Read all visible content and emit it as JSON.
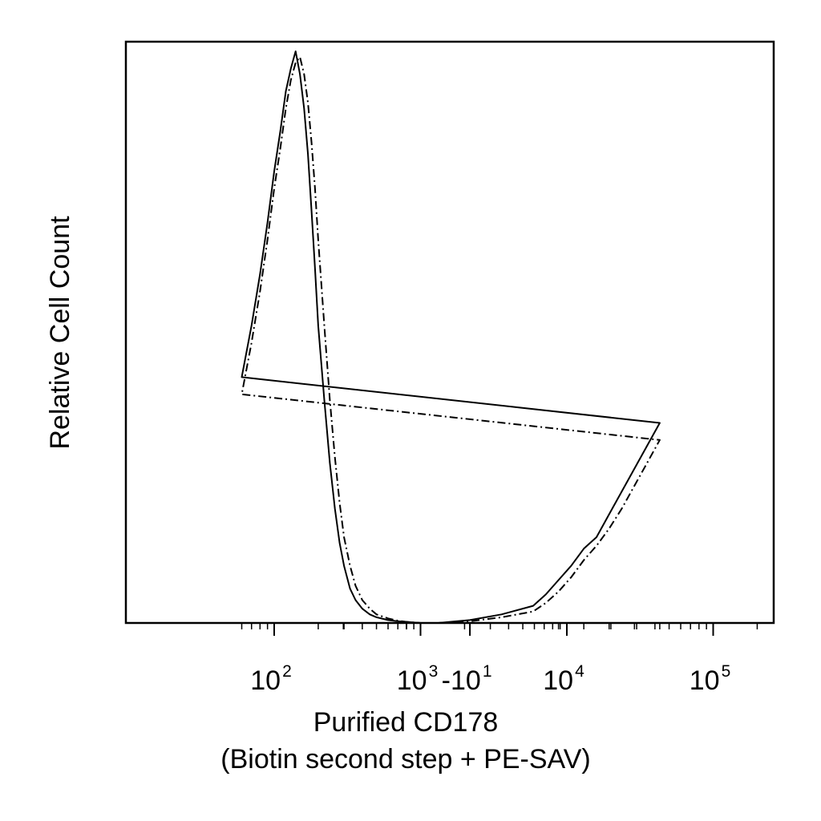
{
  "chart_data": {
    "type": "line",
    "title": "",
    "xlabel": "Purified CD178",
    "xlabel_line2": "(Biotin second step + PE-SAV)",
    "ylabel": "Relative Cell Count",
    "xscale": "biexponential",
    "xlim": [
      -30,
      250000
    ],
    "ylim": [
      0,
      100
    ],
    "grid": false,
    "legend": "none",
    "x_ticks": [
      {
        "base": "-10",
        "exp": "1",
        "value": -10
      },
      {
        "base": "10",
        "exp": "2",
        "value": 100
      },
      {
        "base": "10",
        "exp": "3",
        "value": 1000
      },
      {
        "base": "10",
        "exp": "4",
        "value": 10000
      },
      {
        "base": "10",
        "exp": "5",
        "value": 100000
      }
    ],
    "series": [
      {
        "style": "solid",
        "x": [
          -30,
          -15,
          -10,
          -5,
          0,
          5,
          10,
          15,
          20,
          25,
          30,
          35,
          40,
          45,
          50,
          60,
          70,
          80,
          90,
          100,
          110,
          120,
          130,
          140,
          150,
          160,
          170,
          180,
          190,
          200,
          220,
          240,
          260,
          280,
          300,
          330,
          360,
          400,
          450,
          500,
          600,
          700,
          800,
          1000
        ],
        "y": [
          0,
          0,
          0.5,
          1.5,
          3,
          5,
          7.5,
          10,
          13,
          15,
          19,
          23,
          27,
          31,
          35,
          43,
          52,
          61,
          70,
          79,
          86,
          93,
          97,
          100,
          96,
          90,
          82,
          72,
          62,
          52,
          39,
          28,
          20,
          14,
          10,
          6,
          4,
          2.5,
          1.5,
          1,
          0.5,
          0.3,
          0.2,
          0
        ]
      },
      {
        "style": "dashdot",
        "x": [
          -30,
          -15,
          -10,
          -5,
          0,
          5,
          10,
          15,
          20,
          25,
          30,
          35,
          40,
          45,
          50,
          60,
          70,
          80,
          90,
          100,
          110,
          120,
          130,
          140,
          150,
          160,
          170,
          180,
          190,
          200,
          220,
          240,
          260,
          280,
          300,
          330,
          360,
          400,
          450,
          500,
          600,
          700,
          800,
          1000
        ],
        "y": [
          0,
          0,
          0.3,
          1,
          2,
          3.5,
          5.5,
          8,
          11,
          13.5,
          16.5,
          20,
          24,
          28,
          32,
          40,
          49,
          58,
          67,
          76,
          83,
          90,
          95,
          98,
          99,
          96,
          91,
          84,
          76,
          67,
          52,
          39,
          29,
          21,
          15,
          10,
          6.5,
          4,
          2.5,
          1.5,
          0.8,
          0.4,
          0.2,
          0
        ]
      }
    ]
  }
}
